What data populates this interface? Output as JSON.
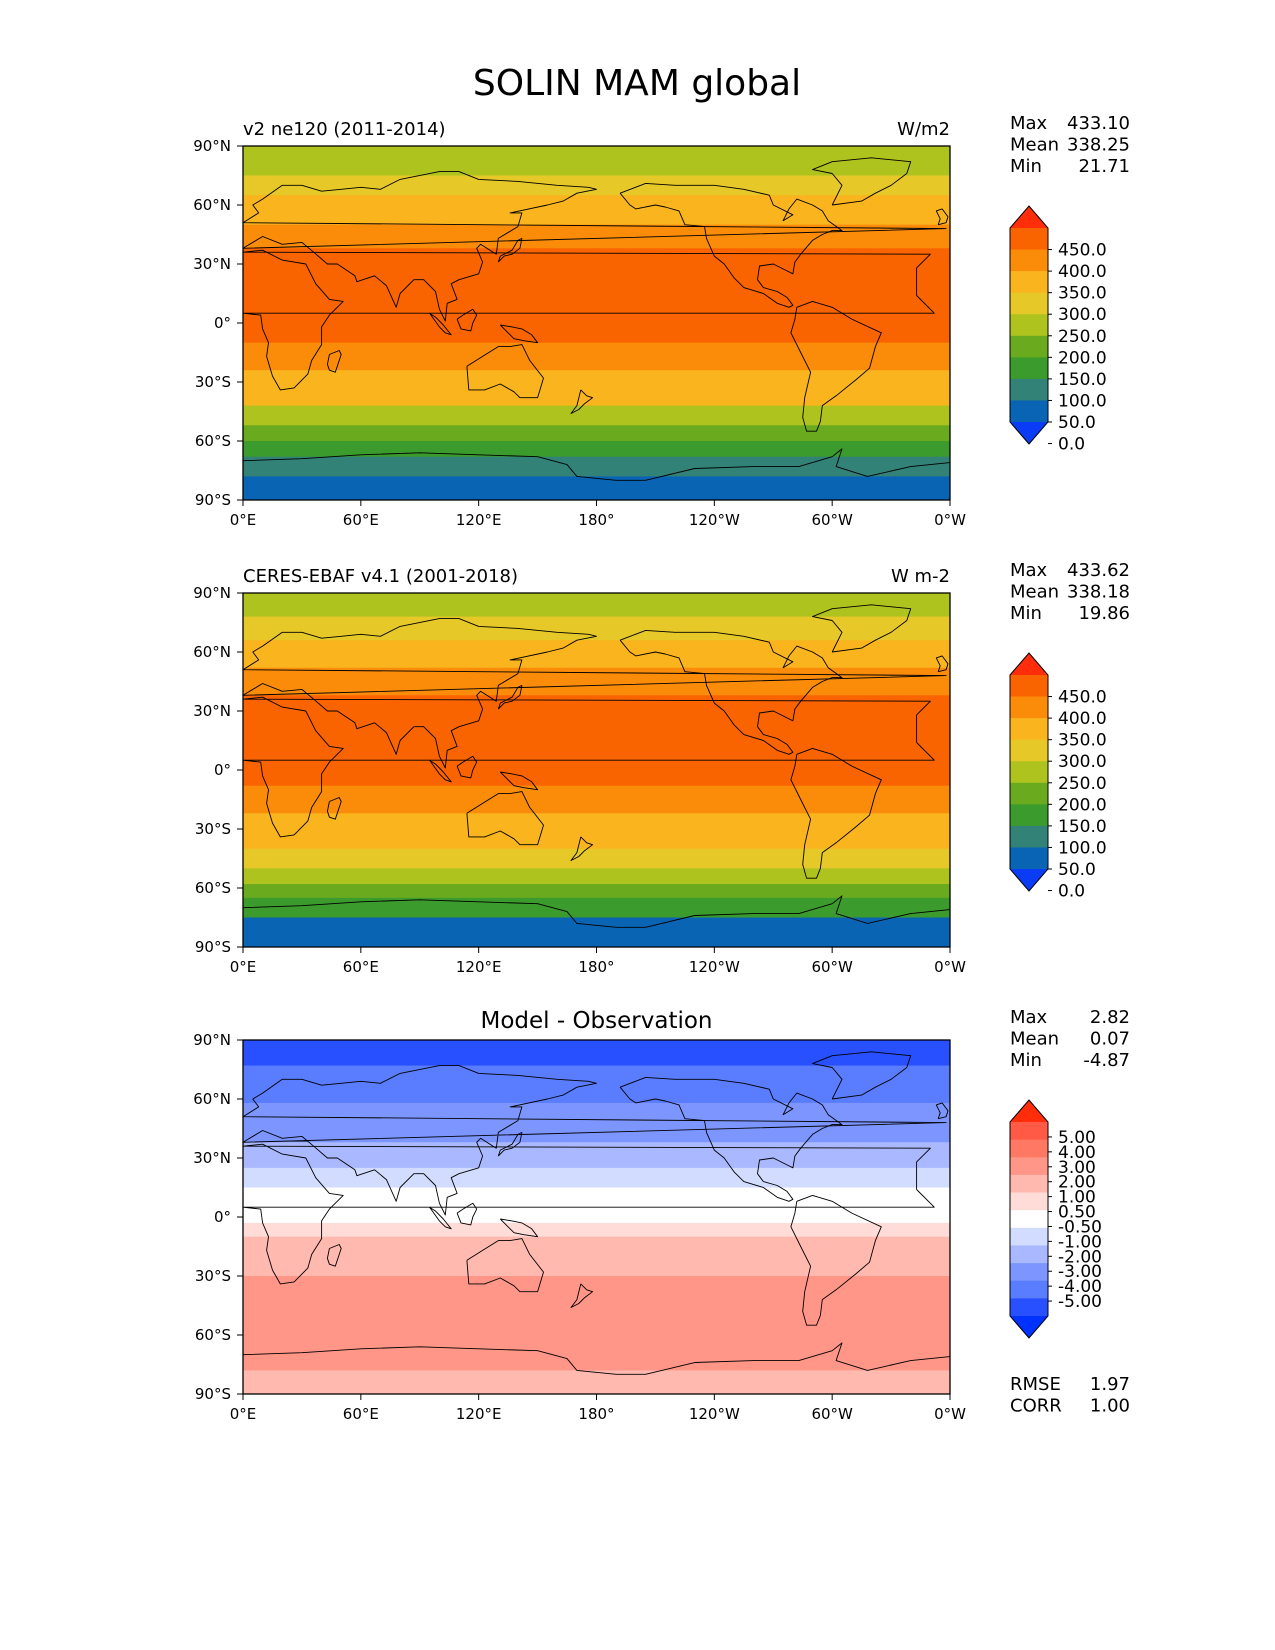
{
  "title": "SOLIN MAM global",
  "colors": {
    "field": [
      "#0a3cf5",
      "#0a64b4",
      "#328278",
      "#3c9b2d",
      "#69aa1e",
      "#afc31e",
      "#e6c828",
      "#fab41e",
      "#fa8c0a",
      "#fa6400",
      "#ff2d0a"
    ],
    "diff": [
      "#0032ff",
      "#2850ff",
      "#5a7dff",
      "#7d96ff",
      "#aab9ff",
      "#d2dcff",
      "#ffffff",
      "#ffdcd7",
      "#ffb9af",
      "#ff9687",
      "#ff7864",
      "#ff5a46",
      "#ff2d0a"
    ]
  },
  "chart_data": [
    {
      "type": "heatmap",
      "panel": "model",
      "left_title": "v2 ne120 (2011-2014)",
      "right_title": "W/m2",
      "xticklabels": [
        "0°E",
        "60°E",
        "120°E",
        "180°",
        "120°W",
        "60°W",
        "0°W"
      ],
      "yticklabels": [
        "90°N",
        "60°N",
        "30°N",
        "0°",
        "30°S",
        "60°S",
        "90°S"
      ],
      "xlim": [
        0,
        360
      ],
      "ylim": [
        -90,
        90
      ],
      "stats": [
        {
          "label": "Max",
          "value": "433.10"
        },
        {
          "label": "Mean",
          "value": "338.25"
        },
        {
          "label": "Min",
          "value": "21.71"
        }
      ],
      "colorbar": {
        "levels": [
          "450.0",
          "400.0",
          "350.0",
          "300.0",
          "250.0",
          "200.0",
          "150.0",
          "100.0",
          "50.0",
          "0.0"
        ],
        "extend": "both"
      },
      "bands": [
        {
          "lat_top": 90,
          "lat_bottom": 75,
          "level": 5
        },
        {
          "lat_top": 75,
          "lat_bottom": 65,
          "level": 6
        },
        {
          "lat_top": 65,
          "lat_bottom": 50,
          "level": 7
        },
        {
          "lat_top": 50,
          "lat_bottom": 38,
          "level": 8
        },
        {
          "lat_top": 38,
          "lat_bottom": -10,
          "level": 9
        },
        {
          "lat_top": -10,
          "lat_bottom": -24,
          "level": 8
        },
        {
          "lat_top": -24,
          "lat_bottom": -42,
          "level": 7
        },
        {
          "lat_top": -42,
          "lat_bottom": -52,
          "level": 5
        },
        {
          "lat_top": -52,
          "lat_bottom": -60,
          "level": 4
        },
        {
          "lat_top": -60,
          "lat_bottom": -68,
          "level": 3
        },
        {
          "lat_top": -68,
          "lat_bottom": -78,
          "level": 2
        },
        {
          "lat_top": -78,
          "lat_bottom": -90,
          "level": 1
        }
      ]
    },
    {
      "type": "heatmap",
      "panel": "observation",
      "left_title": "CERES-EBAF v4.1 (2001-2018)",
      "right_title": "W m-2",
      "xticklabels": [
        "0°E",
        "60°E",
        "120°E",
        "180°",
        "120°W",
        "60°W",
        "0°W"
      ],
      "yticklabels": [
        "90°N",
        "60°N",
        "30°N",
        "0°",
        "30°S",
        "60°S",
        "90°S"
      ],
      "xlim": [
        0,
        360
      ],
      "ylim": [
        -90,
        90
      ],
      "stats": [
        {
          "label": "Max",
          "value": "433.62"
        },
        {
          "label": "Mean",
          "value": "338.18"
        },
        {
          "label": "Min",
          "value": "19.86"
        }
      ],
      "colorbar": {
        "levels": [
          "450.0",
          "400.0",
          "350.0",
          "300.0",
          "250.0",
          "200.0",
          "150.0",
          "100.0",
          "50.0",
          "0.0"
        ],
        "extend": "both"
      },
      "bands": [
        {
          "lat_top": 90,
          "lat_bottom": 78,
          "level": 5
        },
        {
          "lat_top": 78,
          "lat_bottom": 66,
          "level": 6
        },
        {
          "lat_top": 66,
          "lat_bottom": 52,
          "level": 7
        },
        {
          "lat_top": 52,
          "lat_bottom": 38,
          "level": 8
        },
        {
          "lat_top": 38,
          "lat_bottom": -8,
          "level": 9
        },
        {
          "lat_top": -8,
          "lat_bottom": -22,
          "level": 8
        },
        {
          "lat_top": -22,
          "lat_bottom": -40,
          "level": 7
        },
        {
          "lat_top": -40,
          "lat_bottom": -50,
          "level": 6
        },
        {
          "lat_top": -50,
          "lat_bottom": -58,
          "level": 5
        },
        {
          "lat_top": -58,
          "lat_bottom": -65,
          "level": 4
        },
        {
          "lat_top": -65,
          "lat_bottom": -75,
          "level": 3
        },
        {
          "lat_top": -75,
          "lat_bottom": -90,
          "level": 1
        }
      ]
    },
    {
      "type": "heatmap",
      "panel": "difference",
      "center_title": "Model - Observation",
      "xticklabels": [
        "0°E",
        "60°E",
        "120°E",
        "180°",
        "120°W",
        "60°W",
        "0°W"
      ],
      "yticklabels": [
        "90°N",
        "60°N",
        "30°N",
        "0°",
        "30°S",
        "60°S",
        "90°S"
      ],
      "xlim": [
        0,
        360
      ],
      "ylim": [
        -90,
        90
      ],
      "stats": [
        {
          "label": "Max",
          "value": "2.82"
        },
        {
          "label": "Mean",
          "value": "0.07"
        },
        {
          "label": "Min",
          "value": "-4.87"
        }
      ],
      "colorbar": {
        "levels": [
          "5.00",
          "4.00",
          "3.00",
          "2.00",
          "1.00",
          "0.50",
          "-0.50",
          "-1.00",
          "-2.00",
          "-3.00",
          "-4.00",
          "-5.00"
        ],
        "extend": "both"
      },
      "bands": [
        {
          "lat_top": 90,
          "lat_bottom": 77,
          "level": 1
        },
        {
          "lat_top": 77,
          "lat_bottom": 58,
          "level": 2
        },
        {
          "lat_top": 58,
          "lat_bottom": 38,
          "level": 3
        },
        {
          "lat_top": 38,
          "lat_bottom": 25,
          "level": 4
        },
        {
          "lat_top": 25,
          "lat_bottom": 15,
          "level": 5
        },
        {
          "lat_top": 15,
          "lat_bottom": -3,
          "level": 6
        },
        {
          "lat_top": -3,
          "lat_bottom": -10,
          "level": 7
        },
        {
          "lat_top": -10,
          "lat_bottom": -30,
          "level": 8
        },
        {
          "lat_top": -30,
          "lat_bottom": -78,
          "level": 9
        },
        {
          "lat_top": -78,
          "lat_bottom": -90,
          "level": 8
        }
      ],
      "extra_stats": [
        {
          "label": "RMSE",
          "value": "1.97"
        },
        {
          "label": "CORR",
          "value": "1.00"
        }
      ]
    }
  ]
}
